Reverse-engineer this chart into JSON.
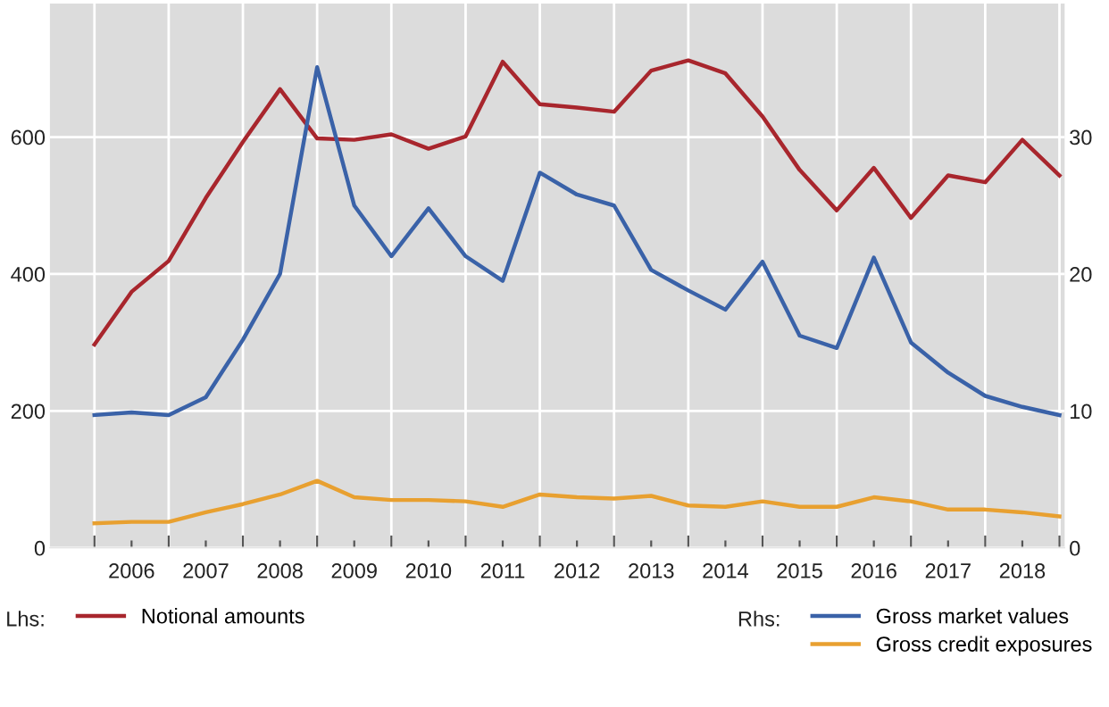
{
  "chart_data": {
    "type": "line",
    "x": [
      2006.0,
      2006.5,
      2007.0,
      2007.5,
      2008.0,
      2008.5,
      2009.0,
      2009.5,
      2010.0,
      2010.5,
      2011.0,
      2011.5,
      2012.0,
      2012.5,
      2013.0,
      2013.5,
      2014.0,
      2014.5,
      2015.0,
      2015.5,
      2016.0,
      2016.5,
      2017.0,
      2017.5,
      2018.0,
      2018.5,
      2019.0
    ],
    "series": [
      {
        "name": "Notional amounts",
        "color": "#a8262d",
        "values": [
          297,
          374,
          419,
          511,
          593,
          670,
          598,
          596,
          604,
          583,
          601,
          710,
          648,
          643,
          637,
          697,
          712,
          693,
          630,
          552,
          493,
          555,
          482,
          544,
          534,
          596,
          544
        ]
      },
      {
        "name": "Gross market values",
        "color": "#3a62a8",
        "axis": "y2",
        "values": [
          9.7,
          9.9,
          9.7,
          11.0,
          15.2,
          20.0,
          35.1,
          25.0,
          21.3,
          24.8,
          21.3,
          19.5,
          27.4,
          25.8,
          25.0,
          20.3,
          18.8,
          17.4,
          20.9,
          15.5,
          14.6,
          21.2,
          15.0,
          12.8,
          11.1,
          10.3,
          9.7
        ]
      },
      {
        "name": "Gross credit exposures",
        "color": "#e8a030",
        "axis": "y2",
        "values": [
          1.8,
          1.9,
          1.9,
          2.6,
          3.2,
          3.9,
          4.9,
          3.7,
          3.5,
          3.5,
          3.4,
          3.0,
          3.9,
          3.7,
          3.6,
          3.8,
          3.1,
          3.0,
          3.4,
          3.0,
          3.0,
          3.7,
          3.4,
          2.8,
          2.8,
          2.6,
          2.3
        ]
      }
    ],
    "xlim": [
      2005.4,
      2019.07
    ],
    "xticks": [
      {
        "value": 2006,
        "label": null
      },
      {
        "value": 2006.5,
        "label": "2006"
      },
      {
        "value": 2007,
        "label": null
      },
      {
        "value": 2007.5,
        "label": "2007"
      },
      {
        "value": 2008,
        "label": null
      },
      {
        "value": 2008.5,
        "label": "2008"
      },
      {
        "value": 2009,
        "label": null
      },
      {
        "value": 2009.5,
        "label": "2009"
      },
      {
        "value": 2010,
        "label": null
      },
      {
        "value": 2010.5,
        "label": "2010"
      },
      {
        "value": 2011,
        "label": null
      },
      {
        "value": 2011.5,
        "label": "2011"
      },
      {
        "value": 2012,
        "label": null
      },
      {
        "value": 2012.5,
        "label": "2012"
      },
      {
        "value": 2013,
        "label": null
      },
      {
        "value": 2013.5,
        "label": "2013"
      },
      {
        "value": 2014,
        "label": null
      },
      {
        "value": 2014.5,
        "label": "2014"
      },
      {
        "value": 2015,
        "label": null
      },
      {
        "value": 2015.5,
        "label": "2015"
      },
      {
        "value": 2016,
        "label": null
      },
      {
        "value": 2016.5,
        "label": "2016"
      },
      {
        "value": 2017,
        "label": null
      },
      {
        "value": 2017.5,
        "label": "2017"
      },
      {
        "value": 2018,
        "label": null
      },
      {
        "value": 2018.5,
        "label": "2018"
      },
      {
        "value": 2019,
        "label": null
      }
    ],
    "ylim": [
      0,
      795
    ],
    "yticks": [
      0,
      200,
      400,
      600
    ],
    "y2lim": [
      0,
      39.75
    ],
    "y2ticks": [
      0,
      10,
      20,
      30
    ],
    "grid": true,
    "legend": "bottom",
    "marker": "none",
    "line_style": "solid",
    "annotations": [
      "Lhs:",
      "Rhs:"
    ]
  }
}
